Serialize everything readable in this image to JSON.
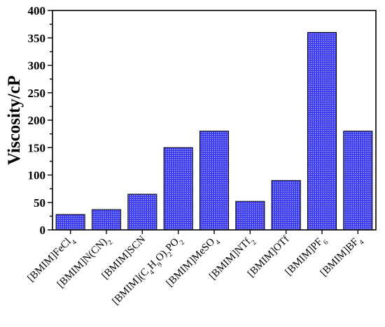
{
  "chart_data": {
    "type": "bar",
    "ylabel": "Viscosity/cP",
    "xlabel": "",
    "ylim": [
      0,
      400
    ],
    "yticks": [
      0,
      50,
      100,
      150,
      200,
      250,
      300,
      350,
      400
    ],
    "y_minor_step": 25,
    "grid": false,
    "bar_fill_color": "#3b3bf0",
    "bar_pattern_color": "#c6c6ff",
    "bar_edge_color": "#000000",
    "categories": [
      [
        {
          "t": "[BMIM]FeCl"
        },
        {
          "t": "4",
          "sub": true
        }
      ],
      [
        {
          "t": "[BMIM]N(CN)"
        },
        {
          "t": "2",
          "sub": true
        }
      ],
      [
        {
          "t": "[BMIM]SCN"
        }
      ],
      [
        {
          "t": "[BMIM](C"
        },
        {
          "t": "4",
          "sub": true
        },
        {
          "t": "H"
        },
        {
          "t": "9",
          "sub": true
        },
        {
          "t": "O)"
        },
        {
          "t": "2",
          "sub": true
        },
        {
          "t": "PO"
        },
        {
          "t": "2",
          "sub": true
        }
      ],
      [
        {
          "t": "[BMIM]MeSO"
        },
        {
          "t": "4",
          "sub": true
        }
      ],
      [
        {
          "t": "[BMIM]NTf"
        },
        {
          "t": "2",
          "sub": true
        }
      ],
      [
        {
          "t": "[BMIM]OTf"
        }
      ],
      [
        {
          "t": "[BMIM]PF"
        },
        {
          "t": "6",
          "sub": true
        }
      ],
      [
        {
          "t": "[BMIM]BF"
        },
        {
          "t": "4",
          "sub": true
        }
      ]
    ],
    "values": [
      28,
      37,
      65,
      150,
      180,
      52,
      90,
      360,
      180
    ]
  }
}
